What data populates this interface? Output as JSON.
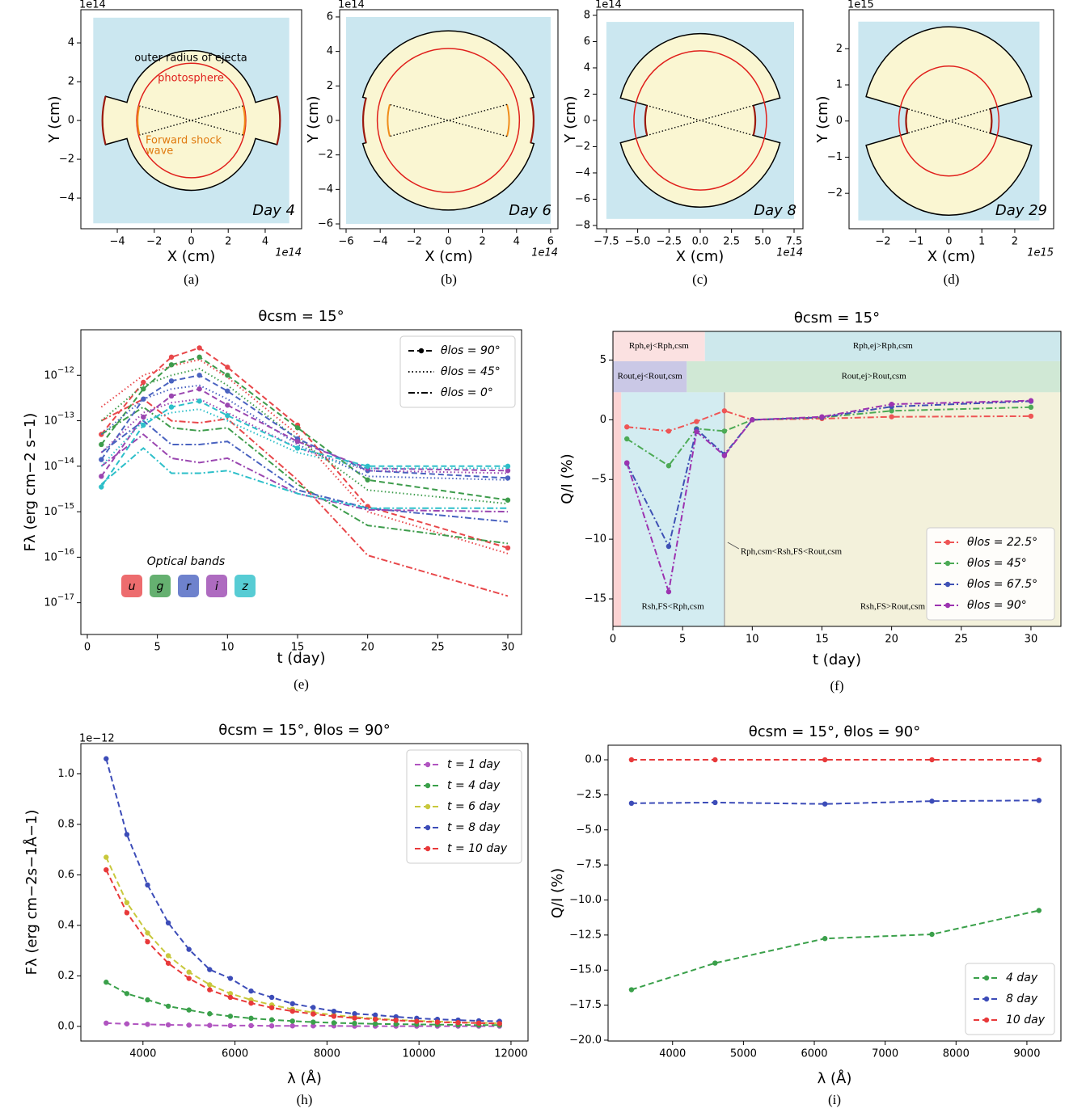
{
  "chart_data": [
    {
      "type": "schematic",
      "caption": "(a)",
      "xlabel": "X (cm)",
      "ylabel": "Y (cm)",
      "x_offset": "1e14",
      "y_offset": "1e14",
      "day": "Day 4",
      "xlim": [
        -5.97,
        5.97
      ],
      "xticks": [
        {
          "value": -4,
          "label": "−4"
        },
        {
          "value": -2,
          "label": "−2"
        },
        0,
        2,
        4
      ],
      "ylim": [
        -5.58,
        5.71
      ],
      "yticks": [
        {
          "value": -4,
          "label": "−4"
        },
        {
          "value": -2,
          "label": "−2"
        },
        0,
        2,
        4
      ],
      "background": [
        -5.3,
        5.3
      ],
      "r_ejecta": 3.6,
      "r_photosphere": 2.95,
      "r_csm": 4.8,
      "r_shock": 2.9,
      "half_angle": 15,
      "annotations": [
        {
          "text": "outer radius of ejecta",
          "color": "#000000"
        },
        {
          "text": "photosphere",
          "color": "#e0201c"
        },
        {
          "text": "Forward shock",
          "color": "#e07b10"
        },
        {
          "text": "wave",
          "color": "#e07b10"
        }
      ]
    },
    {
      "type": "schematic",
      "caption": "(b)",
      "xlabel": "X (cm)",
      "ylabel": "Y (cm)",
      "x_offset": "1e14",
      "y_offset": "1e14",
      "day": "Day 6",
      "xlim": [
        -6.38,
        6.43
      ],
      "xticks": [
        {
          "value": -6,
          "label": "−6"
        },
        {
          "value": -4,
          "label": "−4"
        },
        {
          "value": -2,
          "label": "−2"
        },
        0,
        2,
        4,
        6
      ],
      "ylim": [
        -6.28,
        6.42
      ],
      "yticks": [
        {
          "value": -6,
          "label": "−6"
        },
        {
          "value": -4,
          "label": "−4"
        },
        {
          "value": -2,
          "label": "−2"
        },
        0,
        2,
        4,
        6
      ],
      "background": [
        -6,
        6
      ],
      "r_ejecta": 5.2,
      "r_photosphere": 4.17,
      "r_csm": 5.0,
      "r_shock": 3.56,
      "half_angle": 15
    },
    {
      "type": "schematic",
      "caption": "(c)",
      "xlabel": "X (cm)",
      "ylabel": "Y (cm)",
      "x_offset": "1e14",
      "y_offset": "1e14",
      "day": "Day 8",
      "xlim": [
        -8.27,
        8.21
      ],
      "xticks": [
        {
          "value": -7.5,
          "label": "−7.5"
        },
        {
          "value": -5,
          "label": "−5.0"
        },
        {
          "value": -2.5,
          "label": "−2.5"
        },
        {
          "value": 0,
          "label": "0.0"
        },
        2.5,
        {
          "value": 5,
          "label": "5.0"
        },
        7.5
      ],
      "ylim": [
        -8.25,
        8.43
      ],
      "yticks": [
        {
          "value": -8,
          "label": "−8"
        },
        {
          "value": -6,
          "label": "−6"
        },
        {
          "value": -4,
          "label": "−4"
        },
        {
          "value": -2,
          "label": "−2"
        },
        0,
        2,
        4,
        6,
        8
      ],
      "background": [
        -7.5,
        7.5
      ],
      "r_ejecta": 6.6,
      "r_photosphere": 5.3,
      "r_csm": 4.4,
      "half_angle": 15
    },
    {
      "type": "schematic",
      "caption": "(d)",
      "xlabel": "X (cm)",
      "ylabel": "Y (cm)",
      "x_offset": "1e15",
      "y_offset": "1e15",
      "day": "Day 29",
      "xlim": [
        -3.03,
        3.18
      ],
      "xticks": [
        {
          "value": -2,
          "label": "−2"
        },
        {
          "value": -1,
          "label": "−1"
        },
        0,
        1,
        2
      ],
      "ylim": [
        -2.98,
        3.08
      ],
      "yticks": [
        {
          "value": -2,
          "label": "−2"
        },
        {
          "value": -1,
          "label": "−1"
        },
        0,
        1,
        2
      ],
      "background": [
        -2.75,
        2.75
      ],
      "r_ejecta": 2.6,
      "r_photosphere": 1.52,
      "r_csm": 1.3,
      "half_angle": 15
    },
    {
      "type": "line",
      "title": "θcsm = 15°",
      "caption": "(e)",
      "xlabel": "t (day)",
      "ylabel": "Fλ (erg cm−2 s−1)",
      "log_y": true,
      "x": [
        1,
        4,
        6,
        8,
        10,
        15,
        20,
        30
      ],
      "xlim": [
        -0.46,
        30.98
      ],
      "xticks": [
        0,
        5,
        10,
        15,
        20,
        25,
        30
      ],
      "ylim": [
        2e-18,
        1e-11
      ],
      "yticks": [
        {
          "value": 1e-12,
          "label": "10−12"
        },
        {
          "value": 1e-13,
          "label": "10−13"
        },
        {
          "value": 1e-14,
          "label": "10−14"
        },
        {
          "value": 1e-15,
          "label": "10−15"
        },
        {
          "value": 1e-16,
          "label": "10−16"
        },
        {
          "value": 1e-17,
          "label": "10−17"
        }
      ],
      "legend": "upper right",
      "line_styles": [
        {
          "label": "θlos = 90°",
          "dash": "dashed",
          "marker": true
        },
        {
          "label": "θlos = 45°",
          "dash": "dotted",
          "marker": false
        },
        {
          "label": "θlos = 0°",
          "dash": "dashdot",
          "marker": false
        }
      ],
      "bands_title": "Optical bands",
      "bands": [
        {
          "name": "u",
          "color": "#e8474a",
          "series": [
            {
              "values": [
                5e-14,
                7e-13,
                2.5e-12,
                4e-12,
                1.5e-12,
                8e-14,
                1.3e-15,
                1.6e-16
              ]
            },
            {
              "values": [
                2e-13,
                1e-12,
                1.6e-12,
                2.2e-12,
                9e-13,
                5e-14,
                1e-15,
                1.2e-16
              ]
            },
            {
              "values": [
                1e-13,
                3e-13,
                1e-13,
                9e-14,
                1.1e-13,
                5e-15,
                1.1e-16,
                1.4e-17
              ]
            }
          ]
        },
        {
          "name": "g",
          "color": "#3e9c4c",
          "series": [
            {
              "values": [
                3e-14,
                5e-13,
                1.7e-12,
                2.5e-12,
                1e-12,
                7e-14,
                5e-15,
                1.8e-15
              ]
            },
            {
              "values": [
                1e-13,
                6e-13,
                1e-12,
                1.4e-12,
                6e-13,
                4e-14,
                3e-15,
                1.5e-15
              ]
            },
            {
              "values": [
                5e-14,
                2e-13,
                7e-14,
                6e-14,
                7e-14,
                4e-15,
                5e-16,
                2e-16
              ]
            }
          ]
        },
        {
          "name": "r",
          "color": "#4a63c0",
          "series": [
            {
              "values": [
                1.4e-14,
                3e-13,
                7.5e-13,
                1e-12,
                4.5e-13,
                4e-14,
                8e-15,
                5.5e-15
              ]
            },
            {
              "values": [
                5e-14,
                3e-13,
                5e-13,
                6e-13,
                3e-13,
                3e-14,
                6e-15,
                5e-15
              ]
            },
            {
              "values": [
                2e-14,
                1e-13,
                3e-14,
                3e-14,
                3.5e-14,
                3e-15,
                1.2e-15,
                6e-16
              ]
            }
          ]
        },
        {
          "name": "i",
          "color": "#9a46b0",
          "series": [
            {
              "values": [
                6e-15,
                1.2e-13,
                3.5e-13,
                5e-13,
                2.2e-13,
                3.5e-14,
                9e-15,
                8e-15
              ]
            },
            {
              "values": [
                2e-14,
                1.5e-13,
                2.5e-13,
                3e-13,
                1.5e-13,
                2.5e-14,
                8e-15,
                7e-15
              ]
            },
            {
              "values": [
                1e-14,
                5e-14,
                1.5e-14,
                1.2e-14,
                1.5e-14,
                2.5e-15,
                1.1e-15,
                1e-15
              ]
            }
          ]
        },
        {
          "name": "z",
          "color": "#2dbfc9",
          "series": [
            {
              "values": [
                3.5e-15,
                8e-14,
                2e-13,
                2.7e-13,
                1.3e-13,
                2.5e-14,
                1e-14,
                1e-14
              ]
            },
            {
              "values": [
                1e-14,
                1e-13,
                1.5e-13,
                1.8e-13,
                1e-13,
                2e-14,
                9e-15,
                9e-15
              ]
            },
            {
              "values": [
                4e-15,
                2.5e-14,
                7e-15,
                7e-15,
                8e-15,
                2.5e-15,
                1.2e-15,
                1.2e-15
              ]
            }
          ]
        }
      ]
    },
    {
      "type": "line",
      "title": "θcsm = 15°",
      "caption": "(f)",
      "xlabel": "t (day)",
      "ylabel": "Q/I (%)",
      "x": [
        1,
        4,
        6,
        8,
        10,
        15,
        20,
        30
      ],
      "xlim": [
        0,
        32.15
      ],
      "xticks": [
        0,
        5,
        10,
        15,
        20,
        25,
        30
      ],
      "ylim": [
        -17.3,
        7.4
      ],
      "yticks": [
        {
          "value": -15,
          "label": "−15"
        },
        {
          "value": -10,
          "label": "−10"
        },
        {
          "value": -5,
          "label": "−5"
        },
        0,
        5
      ],
      "dash": "dashdot",
      "marker": true,
      "legend": "lower right",
      "series": [
        {
          "name": "θlos = 22.5°",
          "color": "#ee5555",
          "values": [
            -0.6,
            -0.95,
            -0.15,
            0.75,
            0,
            0.1,
            0.25,
            0.3
          ]
        },
        {
          "name": "θlos = 45°",
          "color": "#4caa55",
          "values": [
            -1.6,
            -3.85,
            -0.75,
            -0.95,
            0,
            0.2,
            0.75,
            1.05
          ]
        },
        {
          "name": "θlos = 67.5°",
          "color": "#3f51b5",
          "values": [
            -3.65,
            -10.6,
            -0.8,
            -2.9,
            0,
            0.2,
            1.1,
            1.55
          ]
        },
        {
          "name": "θlos = 90°",
          "color": "#9c33b0",
          "values": [
            -3.6,
            -14.4,
            -1.0,
            -3.0,
            0,
            0.25,
            1.3,
            1.6
          ]
        }
      ],
      "regions": [
        {
          "label": "Rph,ej<Rph,csm",
          "color": "#fbe1e1",
          "x": [
            0,
            6.6
          ],
          "y": [
            4.9,
            7.4
          ]
        },
        {
          "label": "Rph,ej>Rph,csm",
          "color": "#cde8ec",
          "x": [
            6.6,
            32.15
          ],
          "y": [
            4.9,
            7.4
          ]
        },
        {
          "label": "Rout,ej<Rout,csm",
          "color": "#cac8e6",
          "x": [
            0,
            5.3
          ],
          "y": [
            2.3,
            4.9
          ]
        },
        {
          "label": "Rout,ej>Rout,csm",
          "color": "#d0e8d5",
          "x": [
            5.3,
            32.15
          ],
          "y": [
            2.3,
            4.9
          ]
        },
        {
          "color": "#fcd3d3",
          "x": [
            0,
            0.6
          ],
          "y": [
            -17.3,
            2.3
          ]
        },
        {
          "label": "Rsh,FS<Rph,csm",
          "color": "#d3ecf1",
          "x": [
            0.6,
            8
          ],
          "y": [
            -17.3,
            2.3
          ]
        },
        {
          "label": "Rsh,FS>Rout,csm",
          "color": "#f3f1db",
          "x": [
            8,
            32.15
          ],
          "y": [
            -17.3,
            2.3
          ]
        }
      ],
      "annotation": "Rph,csm<Rsh,FS<Rout,csm"
    },
    {
      "type": "line",
      "title": "θcsm = 15°, θlos = 90°",
      "caption": "(h)",
      "xlabel": "λ (Å)",
      "ylabel": "Fλ (erg cm−2s−1Å−1)",
      "y_offset": "1e−12",
      "x": [
        3200,
        3650,
        4100,
        4550,
        5000,
        5450,
        5900,
        6350,
        6800,
        7250,
        7700,
        8150,
        8600,
        9050,
        9500,
        9950,
        10400,
        10850,
        11300,
        11750
      ],
      "xlim": [
        2650,
        12370
      ],
      "xticks": [
        4000,
        6000,
        8000,
        10000,
        12000
      ],
      "ylim": [
        -0.058,
        1.12
      ],
      "yticks": [
        {
          "value": 0,
          "label": "0.0"
        },
        0.2,
        0.4,
        0.6,
        0.8,
        {
          "value": 1,
          "label": "1.0"
        }
      ],
      "dash": "dashed",
      "marker": true,
      "legend": "upper right",
      "series": [
        {
          "name": "t = 1 day",
          "color": "#b054c0",
          "values": [
            0.013,
            0.01,
            0.008,
            0.006,
            0.005,
            0.004,
            0.003,
            0.003,
            0.002,
            0.002,
            0.002,
            0.002,
            0.001,
            0.001,
            0.001,
            0.001,
            0.001,
            0.001,
            0.001,
            0.001
          ]
        },
        {
          "name": "t = 4 day",
          "color": "#3aa04a",
          "values": [
            0.175,
            0.13,
            0.105,
            0.08,
            0.065,
            0.05,
            0.04,
            0.032,
            0.026,
            0.021,
            0.017,
            0.014,
            0.012,
            0.01,
            0.009,
            0.008,
            0.007,
            0.006,
            0.005,
            0.005
          ]
        },
        {
          "name": "t = 6 day",
          "color": "#c8c83c",
          "values": [
            0.67,
            0.49,
            0.37,
            0.28,
            0.215,
            0.165,
            0.13,
            0.105,
            0.085,
            0.068,
            0.055,
            0.045,
            0.037,
            0.031,
            0.026,
            0.022,
            0.019,
            0.016,
            0.014,
            0.012
          ]
        },
        {
          "name": "t = 8 day",
          "color": "#3c4cb8",
          "values": [
            1.06,
            0.76,
            0.56,
            0.41,
            0.305,
            0.225,
            0.19,
            0.14,
            0.115,
            0.09,
            0.075,
            0.06,
            0.05,
            0.045,
            0.038,
            0.032,
            0.028,
            0.025,
            0.022,
            0.02
          ]
        },
        {
          "name": "t = 10 day",
          "color": "#e8393a",
          "values": [
            0.62,
            0.45,
            0.335,
            0.25,
            0.19,
            0.145,
            0.115,
            0.092,
            0.074,
            0.06,
            0.049,
            0.04,
            0.033,
            0.028,
            0.024,
            0.02,
            0.017,
            0.015,
            0.013,
            0.011
          ]
        }
      ]
    },
    {
      "type": "line",
      "title": "θcsm = 15°, θlos = 90°",
      "caption": "(i)",
      "xlabel": "λ (Å)",
      "ylabel": "Q/I (%)",
      "x": [
        3420,
        4600,
        6150,
        7660,
        9170
      ],
      "xlim": [
        3090,
        9480
      ],
      "xticks": [
        4000,
        5000,
        6000,
        7000,
        8000,
        9000
      ],
      "ylim": [
        -20.06,
        1.04
      ],
      "yticks": [
        {
          "value": 0,
          "label": "0.0"
        },
        {
          "value": -2.5,
          "label": "−2.5"
        },
        {
          "value": -5,
          "label": "−5.0"
        },
        {
          "value": -7.5,
          "label": "−7.5"
        },
        {
          "value": -10,
          "label": "−10.0"
        },
        {
          "value": -12.5,
          "label": "−12.5"
        },
        {
          "value": -15,
          "label": "−15.0"
        },
        {
          "value": -17.5,
          "label": "−17.5"
        },
        {
          "value": -20,
          "label": "−20.0"
        }
      ],
      "dash": "dashed",
      "marker": true,
      "legend": "lower right",
      "series": [
        {
          "name": "4 day",
          "color": "#3aa04a",
          "values": [
            -16.4,
            -14.5,
            -12.75,
            -12.45,
            -10.75
          ]
        },
        {
          "name": "8 day",
          "color": "#3c4cb8",
          "values": [
            -3.1,
            -3.05,
            -3.15,
            -2.95,
            -2.9
          ]
        },
        {
          "name": "10 day",
          "color": "#e8393a",
          "values": [
            0,
            0,
            0,
            0,
            0
          ]
        }
      ]
    }
  ]
}
